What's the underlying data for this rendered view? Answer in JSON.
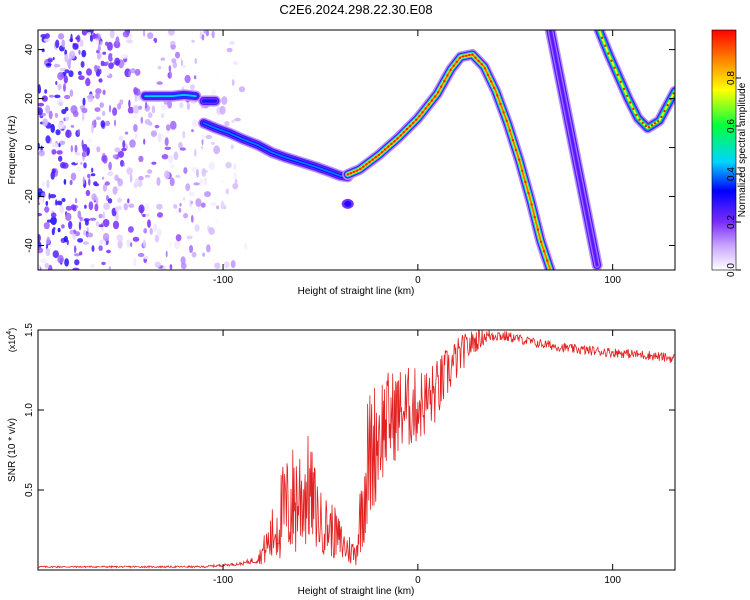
{
  "figure": {
    "title": "C2E6.2024.298.22.30.E08"
  },
  "chart_data": [
    {
      "type": "heatmap",
      "xlabel": "Height of straight line (km)",
      "ylabel": "Frequency (Hz)",
      "xlim": [
        -195,
        132
      ],
      "ylim": [
        -50,
        48
      ],
      "x_ticks": [
        -100,
        0,
        100
      ],
      "y_ticks": [
        -40,
        -20,
        0,
        20,
        40
      ],
      "colorbar": {
        "label": "Normalized spectral amplitude",
        "range": [
          0,
          1
        ],
        "ticks": [
          0.0,
          0.2,
          0.4,
          0.6,
          0.8
        ],
        "colormap": [
          "#ffffff",
          "#c9a6ff",
          "#7b2cff",
          "#0000ff",
          "#00d5ff",
          "#00ff40",
          "#ffff00",
          "#ff8000",
          "#ff0000"
        ]
      },
      "noise_region_x": [
        -195,
        -88
      ],
      "ridges": [
        {
          "x": [
            -140,
            -132,
            -126,
            -120,
            -114
          ],
          "y": [
            21,
            21,
            21,
            21.5,
            21
          ],
          "amplitude": 0.45
        },
        {
          "x": [
            -110,
            -104
          ],
          "y": [
            19,
            19
          ],
          "amplitude": 0.35
        },
        {
          "x": [
            -110,
            -104,
            -97,
            -90,
            -82,
            -75,
            -68,
            -60,
            -52,
            -45,
            -40,
            -36
          ],
          "y": [
            10,
            8,
            6,
            3.5,
            1,
            -2,
            -4,
            -6,
            -8,
            -10,
            -11.5,
            -12
          ],
          "amplitude": 0.4
        },
        {
          "x": [
            -36
          ],
          "y": [
            -23
          ],
          "amplitude": 0.3
        },
        {
          "x": [
            -36,
            -30,
            -20,
            -10,
            0,
            10,
            17,
            22,
            28,
            34,
            40,
            46,
            52,
            58,
            63,
            68
          ],
          "y": [
            -11,
            -9,
            -3,
            4,
            12,
            22,
            32,
            37,
            38,
            33,
            23,
            10,
            -5,
            -22,
            -38,
            -50
          ],
          "amplitude": 0.9
        },
        {
          "x": [
            68,
            72,
            76,
            80,
            84,
            88,
            92
          ],
          "y": [
            48,
            32,
            16,
            0,
            -16,
            -32,
            -48
          ],
          "amplitude": 0.25
        },
        {
          "x": [
            93,
            98,
            103,
            108,
            113,
            118,
            124,
            132
          ],
          "y": [
            48,
            38,
            29,
            20,
            12,
            8,
            11,
            23
          ],
          "amplitude": 0.75
        }
      ]
    },
    {
      "type": "line",
      "xlabel": "Height of straight line (km)",
      "ylabel": "SNR (10 * v/v)",
      "scale_label": "(x10",
      "scale_exponent": "4",
      "xlim": [
        -195,
        132
      ],
      "ylim": [
        0,
        1.5
      ],
      "x_ticks": [
        -100,
        0,
        100
      ],
      "y_ticks": [
        0.5,
        1.0,
        1.5
      ],
      "series": [
        {
          "color": "#e32020",
          "x": [
            -195,
            -150,
            -110,
            -90,
            -82,
            -75,
            -70,
            -62,
            -56,
            -50,
            -44,
            -38,
            -32,
            -26,
            -22,
            -18,
            -14,
            -8,
            -2,
            4,
            10,
            16,
            22,
            28,
            34,
            40,
            50,
            60,
            70,
            80,
            90,
            100,
            110,
            120,
            132
          ],
          "y": [
            0.02,
            0.02,
            0.02,
            0.04,
            0.07,
            0.2,
            0.35,
            0.45,
            0.5,
            0.3,
            0.25,
            0.15,
            0.1,
            0.65,
            0.8,
            0.9,
            0.95,
            1.0,
            1.02,
            1.05,
            1.12,
            1.25,
            1.35,
            1.42,
            1.46,
            1.47,
            1.45,
            1.42,
            1.4,
            1.38,
            1.37,
            1.36,
            1.35,
            1.34,
            1.32
          ],
          "spread": [
            0.005,
            0.005,
            0.006,
            0.01,
            0.03,
            0.18,
            0.3,
            0.4,
            0.35,
            0.2,
            0.18,
            0.12,
            0.08,
            0.45,
            0.4,
            0.35,
            0.3,
            0.28,
            0.25,
            0.22,
            0.2,
            0.16,
            0.12,
            0.08,
            0.05,
            0.04,
            0.03,
            0.03,
            0.03,
            0.03,
            0.03,
            0.03,
            0.03,
            0.03,
            0.03
          ]
        }
      ]
    }
  ]
}
